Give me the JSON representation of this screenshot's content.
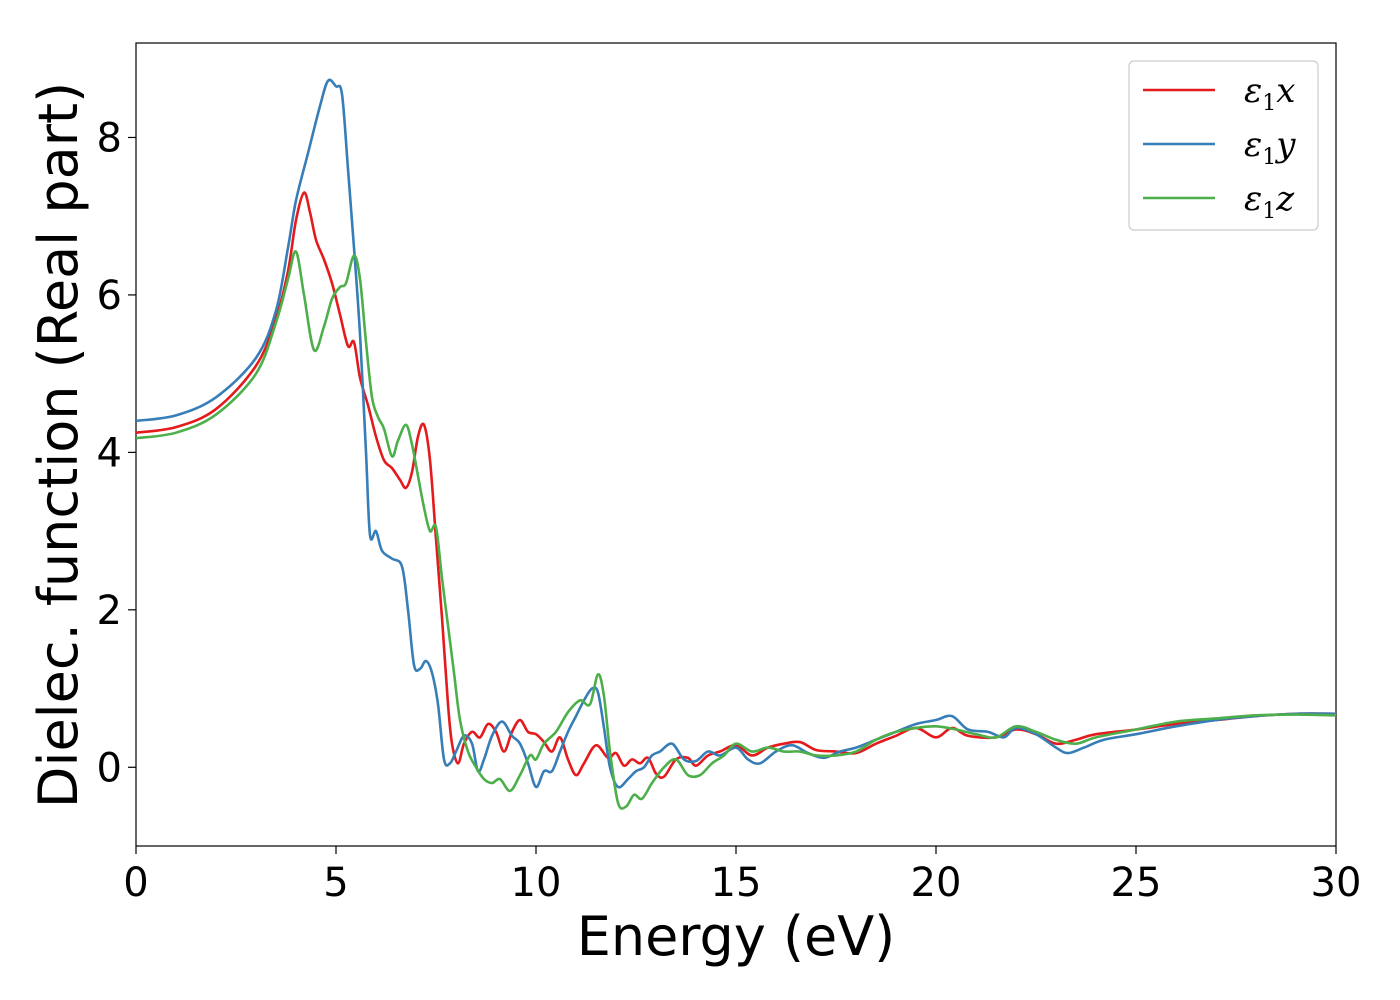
{
  "chart_data": {
    "type": "line",
    "title": "",
    "xlabel": "Energy (eV)",
    "ylabel": "Dielec. function (Real part)",
    "xlim": [
      0,
      30
    ],
    "ylim": [
      -1,
      9.2
    ],
    "xticks": [
      0,
      5,
      10,
      15,
      20,
      25,
      30
    ],
    "yticks": [
      0,
      2,
      4,
      6,
      8
    ],
    "grid": false,
    "legend_position": "top-right",
    "series": [
      {
        "name": "ε1x",
        "legend": {
          "symbol": "ε",
          "sub": "1",
          "var": "x"
        },
        "color": "#e41a1c",
        "points": [
          [
            0,
            4.25
          ],
          [
            1,
            4.32
          ],
          [
            2,
            4.55
          ],
          [
            3,
            5.1
          ],
          [
            3.5,
            5.7
          ],
          [
            3.8,
            6.3
          ],
          [
            4.0,
            6.95
          ],
          [
            4.2,
            7.3
          ],
          [
            4.35,
            7.05
          ],
          [
            4.5,
            6.7
          ],
          [
            4.7,
            6.45
          ],
          [
            4.9,
            6.15
          ],
          [
            5.1,
            5.75
          ],
          [
            5.3,
            5.35
          ],
          [
            5.45,
            5.4
          ],
          [
            5.6,
            4.95
          ],
          [
            5.8,
            4.6
          ],
          [
            6.0,
            4.2
          ],
          [
            6.2,
            3.9
          ],
          [
            6.4,
            3.8
          ],
          [
            6.6,
            3.65
          ],
          [
            6.75,
            3.55
          ],
          [
            6.9,
            3.75
          ],
          [
            7.05,
            4.2
          ],
          [
            7.2,
            4.35
          ],
          [
            7.35,
            3.9
          ],
          [
            7.5,
            2.9
          ],
          [
            7.65,
            1.9
          ],
          [
            7.8,
            0.8
          ],
          [
            7.9,
            0.3
          ],
          [
            8.05,
            0.05
          ],
          [
            8.2,
            0.3
          ],
          [
            8.4,
            0.45
          ],
          [
            8.6,
            0.38
          ],
          [
            8.8,
            0.55
          ],
          [
            9.0,
            0.45
          ],
          [
            9.2,
            0.2
          ],
          [
            9.4,
            0.45
          ],
          [
            9.6,
            0.6
          ],
          [
            9.8,
            0.45
          ],
          [
            10.0,
            0.42
          ],
          [
            10.2,
            0.32
          ],
          [
            10.4,
            0.2
          ],
          [
            10.6,
            0.38
          ],
          [
            10.8,
            0.1
          ],
          [
            11.0,
            -0.1
          ],
          [
            11.2,
            0.05
          ],
          [
            11.5,
            0.28
          ],
          [
            11.8,
            0.12
          ],
          [
            12.0,
            0.18
          ],
          [
            12.2,
            0.02
          ],
          [
            12.4,
            0.1
          ],
          [
            12.6,
            0.05
          ],
          [
            12.8,
            0.12
          ],
          [
            13.0,
            -0.08
          ],
          [
            13.2,
            -0.12
          ],
          [
            13.5,
            0.1
          ],
          [
            13.8,
            0.12
          ],
          [
            14.0,
            0.02
          ],
          [
            14.3,
            0.15
          ],
          [
            14.6,
            0.2
          ],
          [
            15.0,
            0.28
          ],
          [
            15.4,
            0.15
          ],
          [
            15.8,
            0.25
          ],
          [
            16.2,
            0.3
          ],
          [
            16.6,
            0.32
          ],
          [
            17.0,
            0.22
          ],
          [
            17.5,
            0.2
          ],
          [
            18.0,
            0.18
          ],
          [
            18.5,
            0.3
          ],
          [
            19.0,
            0.4
          ],
          [
            19.5,
            0.5
          ],
          [
            20.0,
            0.38
          ],
          [
            20.4,
            0.5
          ],
          [
            20.8,
            0.4
          ],
          [
            21.5,
            0.38
          ],
          [
            22.0,
            0.48
          ],
          [
            22.5,
            0.42
          ],
          [
            23.0,
            0.3
          ],
          [
            23.5,
            0.35
          ],
          [
            24.0,
            0.42
          ],
          [
            25.0,
            0.48
          ],
          [
            26.0,
            0.55
          ],
          [
            27.0,
            0.6
          ],
          [
            28.0,
            0.65
          ],
          [
            29.0,
            0.68
          ],
          [
            30.0,
            0.68
          ]
        ]
      },
      {
        "name": "ε1y",
        "legend": {
          "symbol": "ε",
          "sub": "1",
          "var": "y"
        },
        "color": "#377eb8",
        "points": [
          [
            0,
            4.4
          ],
          [
            1,
            4.47
          ],
          [
            2,
            4.7
          ],
          [
            3,
            5.2
          ],
          [
            3.5,
            5.8
          ],
          [
            3.8,
            6.6
          ],
          [
            4.0,
            7.2
          ],
          [
            4.3,
            7.8
          ],
          [
            4.6,
            8.4
          ],
          [
            4.8,
            8.72
          ],
          [
            5.0,
            8.65
          ],
          [
            5.15,
            8.55
          ],
          [
            5.3,
            7.6
          ],
          [
            5.45,
            6.6
          ],
          [
            5.6,
            5.5
          ],
          [
            5.75,
            4.0
          ],
          [
            5.85,
            2.95
          ],
          [
            6.0,
            3.0
          ],
          [
            6.15,
            2.75
          ],
          [
            6.4,
            2.65
          ],
          [
            6.65,
            2.55
          ],
          [
            6.8,
            2.0
          ],
          [
            6.95,
            1.3
          ],
          [
            7.1,
            1.25
          ],
          [
            7.25,
            1.35
          ],
          [
            7.4,
            1.2
          ],
          [
            7.55,
            0.8
          ],
          [
            7.7,
            0.1
          ],
          [
            7.85,
            0.05
          ],
          [
            8.0,
            0.2
          ],
          [
            8.2,
            0.4
          ],
          [
            8.4,
            0.3
          ],
          [
            8.55,
            -0.05
          ],
          [
            8.7,
            0.1
          ],
          [
            8.9,
            0.4
          ],
          [
            9.15,
            0.58
          ],
          [
            9.4,
            0.4
          ],
          [
            9.6,
            0.3
          ],
          [
            9.8,
            0.05
          ],
          [
            10.0,
            -0.25
          ],
          [
            10.2,
            -0.05
          ],
          [
            10.4,
            -0.05
          ],
          [
            10.6,
            0.2
          ],
          [
            10.8,
            0.45
          ],
          [
            11.0,
            0.65
          ],
          [
            11.2,
            0.85
          ],
          [
            11.4,
            1.0
          ],
          [
            11.55,
            0.95
          ],
          [
            11.7,
            0.5
          ],
          [
            11.85,
            0.0
          ],
          [
            12.05,
            -0.25
          ],
          [
            12.3,
            -0.15
          ],
          [
            12.5,
            -0.05
          ],
          [
            12.7,
            0.0
          ],
          [
            12.9,
            0.15
          ],
          [
            13.1,
            0.2
          ],
          [
            13.4,
            0.3
          ],
          [
            13.7,
            0.1
          ],
          [
            14.0,
            0.08
          ],
          [
            14.3,
            0.2
          ],
          [
            14.6,
            0.15
          ],
          [
            15.0,
            0.25
          ],
          [
            15.3,
            0.1
          ],
          [
            15.6,
            0.05
          ],
          [
            16.0,
            0.2
          ],
          [
            16.4,
            0.28
          ],
          [
            16.8,
            0.18
          ],
          [
            17.2,
            0.12
          ],
          [
            17.6,
            0.2
          ],
          [
            18.0,
            0.25
          ],
          [
            18.5,
            0.35
          ],
          [
            19.0,
            0.45
          ],
          [
            19.5,
            0.55
          ],
          [
            20.0,
            0.6
          ],
          [
            20.4,
            0.65
          ],
          [
            20.8,
            0.48
          ],
          [
            21.3,
            0.45
          ],
          [
            21.7,
            0.38
          ],
          [
            22.0,
            0.5
          ],
          [
            22.5,
            0.42
          ],
          [
            23.0,
            0.25
          ],
          [
            23.3,
            0.18
          ],
          [
            23.7,
            0.25
          ],
          [
            24.2,
            0.35
          ],
          [
            25.0,
            0.42
          ],
          [
            26.0,
            0.52
          ],
          [
            27.0,
            0.6
          ],
          [
            28.0,
            0.65
          ],
          [
            29.0,
            0.68
          ],
          [
            30.0,
            0.68
          ]
        ]
      },
      {
        "name": "ε1z",
        "legend": {
          "symbol": "ε",
          "sub": "1",
          "var": "z"
        },
        "color": "#4daf4a",
        "points": [
          [
            0,
            4.18
          ],
          [
            1,
            4.25
          ],
          [
            2,
            4.48
          ],
          [
            3,
            5.0
          ],
          [
            3.5,
            5.65
          ],
          [
            3.8,
            6.2
          ],
          [
            4.0,
            6.55
          ],
          [
            4.2,
            6.0
          ],
          [
            4.45,
            5.3
          ],
          [
            4.7,
            5.6
          ],
          [
            4.9,
            5.95
          ],
          [
            5.1,
            6.1
          ],
          [
            5.25,
            6.15
          ],
          [
            5.45,
            6.5
          ],
          [
            5.6,
            6.2
          ],
          [
            5.75,
            5.4
          ],
          [
            5.9,
            4.7
          ],
          [
            6.05,
            4.45
          ],
          [
            6.2,
            4.3
          ],
          [
            6.4,
            3.95
          ],
          [
            6.55,
            4.15
          ],
          [
            6.75,
            4.35
          ],
          [
            6.9,
            4.1
          ],
          [
            7.05,
            3.7
          ],
          [
            7.2,
            3.3
          ],
          [
            7.35,
            3.0
          ],
          [
            7.5,
            3.05
          ],
          [
            7.65,
            2.4
          ],
          [
            7.8,
            1.8
          ],
          [
            7.95,
            1.2
          ],
          [
            8.1,
            0.6
          ],
          [
            8.3,
            0.2
          ],
          [
            8.5,
            0.0
          ],
          [
            8.7,
            -0.15
          ],
          [
            8.9,
            -0.2
          ],
          [
            9.1,
            -0.15
          ],
          [
            9.35,
            -0.3
          ],
          [
            9.6,
            -0.1
          ],
          [
            9.85,
            0.15
          ],
          [
            10.0,
            0.1
          ],
          [
            10.2,
            0.3
          ],
          [
            10.5,
            0.45
          ],
          [
            10.8,
            0.7
          ],
          [
            11.1,
            0.85
          ],
          [
            11.35,
            0.8
          ],
          [
            11.55,
            1.18
          ],
          [
            11.7,
            0.9
          ],
          [
            11.85,
            0.2
          ],
          [
            12.05,
            -0.45
          ],
          [
            12.25,
            -0.5
          ],
          [
            12.45,
            -0.35
          ],
          [
            12.65,
            -0.4
          ],
          [
            12.9,
            -0.2
          ],
          [
            13.2,
            0.0
          ],
          [
            13.5,
            0.1
          ],
          [
            13.8,
            -0.1
          ],
          [
            14.1,
            -0.1
          ],
          [
            14.4,
            0.05
          ],
          [
            14.7,
            0.15
          ],
          [
            15.0,
            0.3
          ],
          [
            15.4,
            0.2
          ],
          [
            15.8,
            0.25
          ],
          [
            16.2,
            0.2
          ],
          [
            16.6,
            0.2
          ],
          [
            17.0,
            0.15
          ],
          [
            17.5,
            0.15
          ],
          [
            18.0,
            0.2
          ],
          [
            18.5,
            0.35
          ],
          [
            19.0,
            0.45
          ],
          [
            19.5,
            0.5
          ],
          [
            20.0,
            0.52
          ],
          [
            20.5,
            0.48
          ],
          [
            21.0,
            0.42
          ],
          [
            21.5,
            0.38
          ],
          [
            22.0,
            0.52
          ],
          [
            22.5,
            0.45
          ],
          [
            23.0,
            0.35
          ],
          [
            23.5,
            0.3
          ],
          [
            24.0,
            0.38
          ],
          [
            25.0,
            0.48
          ],
          [
            26.0,
            0.58
          ],
          [
            27.0,
            0.62
          ],
          [
            28.0,
            0.66
          ],
          [
            29.0,
            0.67
          ],
          [
            30.0,
            0.66
          ]
        ]
      }
    ]
  }
}
